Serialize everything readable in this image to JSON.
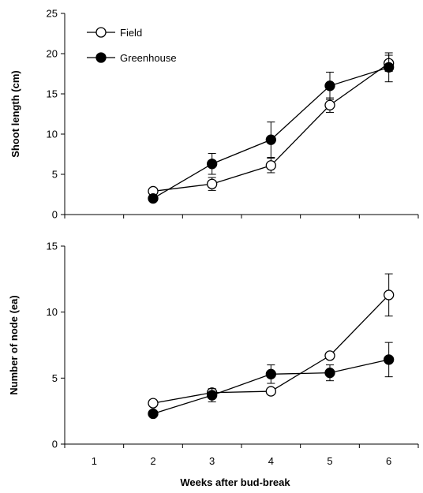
{
  "chart_data": [
    {
      "type": "line",
      "ylabel": "Shoot length (cm)",
      "ylim": [
        0,
        25
      ],
      "yticks": [
        0,
        5,
        10,
        15,
        20,
        25
      ],
      "xlim": [
        0.5,
        6.5
      ],
      "x_tick_marks": [
        1,
        2,
        3,
        4,
        5,
        6
      ],
      "series": [
        {
          "name": "Field",
          "marker": "open-circle",
          "color": "#000000",
          "x": [
            2,
            3,
            4,
            5,
            6
          ],
          "y": [
            2.9,
            3.8,
            6.1,
            13.6,
            18.8
          ],
          "err": [
            0.3,
            0.8,
            0.9,
            0.9,
            1.0
          ]
        },
        {
          "name": "Greenhouse",
          "marker": "filled-circle",
          "color": "#000000",
          "x": [
            2,
            3,
            4,
            5,
            6
          ],
          "y": [
            2.0,
            6.3,
            9.3,
            16.0,
            18.3
          ],
          "err": [
            0.2,
            1.3,
            2.2,
            1.7,
            1.8
          ]
        }
      ],
      "legend": "top-left"
    },
    {
      "type": "line",
      "xlabel": "Weeks after bud-break",
      "ylabel": "Number of node (ea)",
      "ylim": [
        0,
        15
      ],
      "yticks": [
        0,
        5,
        10,
        15
      ],
      "xlim": [
        0.5,
        6.5
      ],
      "xticks": [
        "1",
        "2",
        "3",
        "4",
        "5",
        "6"
      ],
      "x_tick_marks": [
        1,
        2,
        3,
        4,
        5,
        6
      ],
      "series": [
        {
          "name": "Field",
          "marker": "open-circle",
          "color": "#000000",
          "x": [
            2,
            3,
            4,
            5,
            6
          ],
          "y": [
            3.1,
            3.9,
            4.0,
            6.7,
            11.3
          ],
          "err": [
            0.0,
            0.2,
            0.0,
            0.2,
            1.6
          ]
        },
        {
          "name": "Greenhouse",
          "marker": "filled-circle",
          "color": "#000000",
          "x": [
            2,
            3,
            4,
            5,
            6
          ],
          "y": [
            2.3,
            3.7,
            5.3,
            5.4,
            6.4
          ],
          "err": [
            0.0,
            0.5,
            0.7,
            0.6,
            1.3
          ]
        }
      ]
    }
  ]
}
